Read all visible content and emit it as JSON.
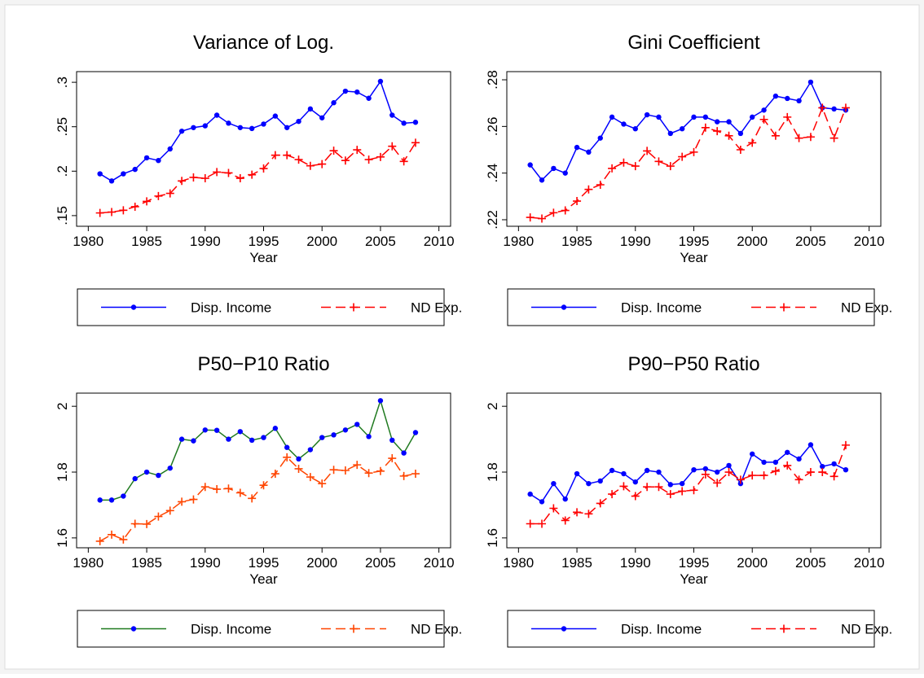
{
  "chart_data": [
    {
      "type": "line",
      "title": "Variance of Log.",
      "xlabel": "Year",
      "x": [
        1981,
        1982,
        1983,
        1984,
        1985,
        1986,
        1987,
        1988,
        1989,
        1990,
        1991,
        1992,
        1993,
        1994,
        1995,
        1996,
        1997,
        1998,
        1999,
        2000,
        2001,
        2002,
        2003,
        2004,
        2005,
        2006,
        2007,
        2008
      ],
      "xlim": [
        1979,
        2011
      ],
      "xticks": [
        1980,
        1985,
        1990,
        1995,
        2000,
        2005,
        2010
      ],
      "ylim": [
        0.138,
        0.312
      ],
      "yticks": [
        {
          "value": 0.15,
          "label": ".15"
        },
        {
          "value": 0.2,
          "label": ".2"
        },
        {
          "value": 0.25,
          "label": ".25"
        },
        {
          "value": 0.3,
          "label": ".3"
        }
      ],
      "series": [
        {
          "name": "Disp. Income",
          "color": "#0000ff",
          "marker_color": "#0000ff",
          "marker": "dot",
          "dash": false,
          "values": [
            0.197,
            0.189,
            0.197,
            0.202,
            0.215,
            0.212,
            0.225,
            0.245,
            0.249,
            0.251,
            0.263,
            0.254,
            0.249,
            0.248,
            0.253,
            0.262,
            0.249,
            0.256,
            0.27,
            0.26,
            0.277,
            0.29,
            0.289,
            0.282,
            0.301,
            0.263,
            0.254,
            0.255
          ]
        },
        {
          "name": "ND Exp.",
          "color": "#ff0000",
          "marker_color": "#ff0000",
          "marker": "plus",
          "dash": true,
          "values": [
            0.153,
            0.154,
            0.156,
            0.16,
            0.166,
            0.172,
            0.175,
            0.189,
            0.193,
            0.192,
            0.199,
            0.198,
            0.192,
            0.196,
            0.203,
            0.218,
            0.218,
            0.213,
            0.206,
            0.208,
            0.223,
            0.212,
            0.224,
            0.213,
            0.216,
            0.228,
            0.211,
            0.232
          ]
        }
      ]
    },
    {
      "type": "line",
      "title": "Gini Coefficient",
      "xlabel": "Year",
      "x": [
        1981,
        1982,
        1983,
        1984,
        1985,
        1986,
        1987,
        1988,
        1989,
        1990,
        1991,
        1992,
        1993,
        1994,
        1995,
        1996,
        1997,
        1998,
        1999,
        2000,
        2001,
        2002,
        2003,
        2004,
        2005,
        2006,
        2007,
        2008
      ],
      "xlim": [
        1979,
        2011
      ],
      "xticks": [
        1980,
        1985,
        1990,
        1995,
        2000,
        2005,
        2010
      ],
      "ylim": [
        0.2172,
        0.2835
      ],
      "yticks": [
        {
          "value": 0.22,
          "label": ".22"
        },
        {
          "value": 0.24,
          "label": ".24"
        },
        {
          "value": 0.26,
          "label": ".26"
        },
        {
          "value": 0.28,
          "label": ".28"
        }
      ],
      "series": [
        {
          "name": "Disp. Income",
          "color": "#0000ff",
          "marker_color": "#0000ff",
          "marker": "dot",
          "dash": false,
          "values": [
            0.2435,
            0.237,
            0.242,
            0.24,
            0.251,
            0.249,
            0.255,
            0.264,
            0.261,
            0.259,
            0.265,
            0.264,
            0.257,
            0.259,
            0.264,
            0.264,
            0.262,
            0.262,
            0.257,
            0.264,
            0.267,
            0.273,
            0.272,
            0.271,
            0.279,
            0.268,
            0.2675,
            0.267
          ]
        },
        {
          "name": "ND Exp.",
          "color": "#ff0000",
          "marker_color": "#ff0000",
          "marker": "plus",
          "dash": true,
          "values": [
            0.221,
            0.2205,
            0.223,
            0.224,
            0.228,
            0.233,
            0.235,
            0.242,
            0.2445,
            0.243,
            0.2495,
            0.245,
            0.243,
            0.247,
            0.249,
            0.2595,
            0.258,
            0.256,
            0.25,
            0.253,
            0.263,
            0.256,
            0.264,
            0.255,
            0.2555,
            0.268,
            0.255,
            0.268
          ]
        }
      ]
    },
    {
      "type": "line",
      "title": "P50−P10 Ratio",
      "xlabel": "Year",
      "x": [
        1981,
        1982,
        1983,
        1984,
        1985,
        1986,
        1987,
        1988,
        1989,
        1990,
        1991,
        1992,
        1993,
        1994,
        1995,
        1996,
        1997,
        1998,
        1999,
        2000,
        2001,
        2002,
        2003,
        2004,
        2005,
        2006,
        2007,
        2008
      ],
      "xlim": [
        1979,
        2011
      ],
      "xticks": [
        1980,
        1985,
        1990,
        1995,
        2000,
        2005,
        2010
      ],
      "ylim": [
        1.57,
        2.04
      ],
      "yticks": [
        1.6,
        1.8,
        2
      ],
      "series": [
        {
          "name": "Disp. Income",
          "color": "#1f7a1f",
          "marker_color": "#0000ff",
          "marker": "dot",
          "dash": false,
          "values": [
            1.715,
            1.715,
            1.727,
            1.78,
            1.8,
            1.79,
            1.812,
            1.9,
            1.895,
            1.928,
            1.927,
            1.9,
            1.923,
            1.897,
            1.905,
            1.933,
            1.875,
            1.84,
            1.868,
            1.905,
            1.913,
            1.928,
            1.945,
            1.908,
            2.017,
            1.897,
            1.858,
            1.92
          ]
        },
        {
          "name": "ND Exp.",
          "color": "#ff4500",
          "marker_color": "#ff4500",
          "marker": "plus",
          "dash": true,
          "values": [
            1.59,
            1.61,
            1.595,
            1.643,
            1.642,
            1.665,
            1.683,
            1.71,
            1.717,
            1.755,
            1.748,
            1.75,
            1.737,
            1.72,
            1.76,
            1.795,
            1.845,
            1.81,
            1.785,
            1.765,
            1.807,
            1.805,
            1.822,
            1.797,
            1.803,
            1.842,
            1.788,
            1.795
          ]
        }
      ]
    },
    {
      "type": "line",
      "title": "P90−P50 Ratio",
      "xlabel": "Year",
      "x": [
        1981,
        1982,
        1983,
        1984,
        1985,
        1986,
        1987,
        1988,
        1989,
        1990,
        1991,
        1992,
        1993,
        1994,
        1995,
        1996,
        1997,
        1998,
        1999,
        2000,
        2001,
        2002,
        2003,
        2004,
        2005,
        2006,
        2007,
        2008
      ],
      "xlim": [
        1979,
        2011
      ],
      "xticks": [
        1980,
        1985,
        1990,
        1995,
        2000,
        2005,
        2010
      ],
      "ylim": [
        1.57,
        2.04
      ],
      "yticks": [
        1.6,
        1.8,
        2
      ],
      "series": [
        {
          "name": "Disp. Income",
          "color": "#0000ff",
          "marker_color": "#0000ff",
          "marker": "dot",
          "dash": false,
          "values": [
            1.733,
            1.71,
            1.765,
            1.718,
            1.795,
            1.765,
            1.773,
            1.805,
            1.795,
            1.77,
            1.805,
            1.8,
            1.762,
            1.765,
            1.807,
            1.81,
            1.8,
            1.82,
            1.765,
            1.855,
            1.83,
            1.83,
            1.86,
            1.84,
            1.883,
            1.817,
            1.825,
            1.807
          ]
        },
        {
          "name": "ND Exp.",
          "color": "#ff0000",
          "marker_color": "#ff0000",
          "marker": "plus",
          "dash": true,
          "values": [
            1.643,
            1.643,
            1.69,
            1.653,
            1.678,
            1.673,
            1.705,
            1.733,
            1.757,
            1.727,
            1.755,
            1.755,
            1.733,
            1.742,
            1.745,
            1.793,
            1.767,
            1.8,
            1.777,
            1.79,
            1.79,
            1.803,
            1.82,
            1.777,
            1.8,
            1.8,
            1.787,
            1.882
          ]
        }
      ]
    }
  ]
}
